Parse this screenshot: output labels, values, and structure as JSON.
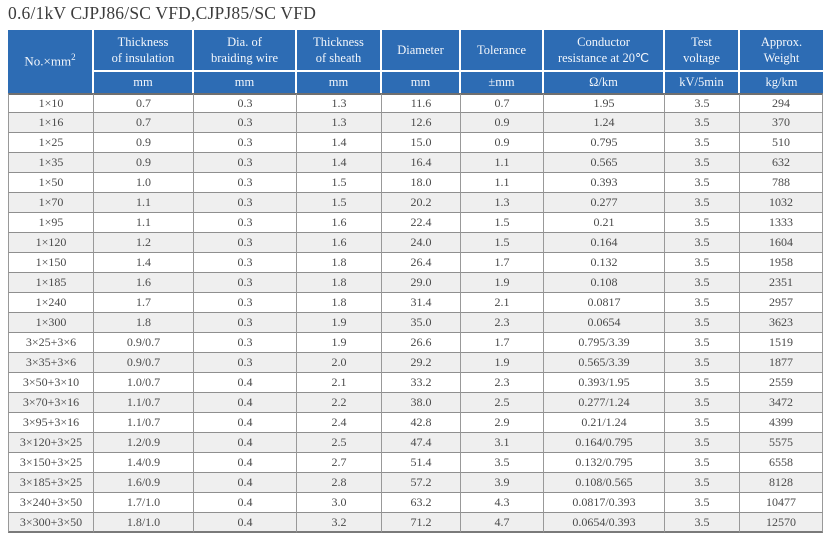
{
  "title": "0.6/1kV CJPJ86/SC VFD,CJPJ85/SC VFD",
  "table": {
    "corner": {
      "base": "No.×mm",
      "sup": "2"
    },
    "columns": [
      {
        "label": "Thickness\nof insulation",
        "unit": "mm"
      },
      {
        "label": "Dia. of\nbraiding wire",
        "unit": "mm"
      },
      {
        "label": "Thickness\nof sheath",
        "unit": "mm"
      },
      {
        "label": "Diameter",
        "unit": "mm"
      },
      {
        "label": "Tolerance",
        "unit": "±mm"
      },
      {
        "label": "Conductor\nresistance at 20℃",
        "unit": "Ω/km"
      },
      {
        "label": "Test\nvoltage",
        "unit": "kV/5min"
      },
      {
        "label": "Approx.\nWeight",
        "unit": "kg/km"
      }
    ],
    "rows": [
      [
        "1×10",
        "0.7",
        "0.3",
        "1.3",
        "11.6",
        "0.7",
        "1.95",
        "3.5",
        "294"
      ],
      [
        "1×16",
        "0.7",
        "0.3",
        "1.3",
        "12.6",
        "0.9",
        "1.24",
        "3.5",
        "370"
      ],
      [
        "1×25",
        "0.9",
        "0.3",
        "1.4",
        "15.0",
        "0.9",
        "0.795",
        "3.5",
        "510"
      ],
      [
        "1×35",
        "0.9",
        "0.3",
        "1.4",
        "16.4",
        "1.1",
        "0.565",
        "3.5",
        "632"
      ],
      [
        "1×50",
        "1.0",
        "0.3",
        "1.5",
        "18.0",
        "1.1",
        "0.393",
        "3.5",
        "788"
      ],
      [
        "1×70",
        "1.1",
        "0.3",
        "1.5",
        "20.2",
        "1.3",
        "0.277",
        "3.5",
        "1032"
      ],
      [
        "1×95",
        "1.1",
        "0.3",
        "1.6",
        "22.4",
        "1.5",
        "0.21",
        "3.5",
        "1333"
      ],
      [
        "1×120",
        "1.2",
        "0.3",
        "1.6",
        "24.0",
        "1.5",
        "0.164",
        "3.5",
        "1604"
      ],
      [
        "1×150",
        "1.4",
        "0.3",
        "1.8",
        "26.4",
        "1.7",
        "0.132",
        "3.5",
        "1958"
      ],
      [
        "1×185",
        "1.6",
        "0.3",
        "1.8",
        "29.0",
        "1.9",
        "0.108",
        "3.5",
        "2351"
      ],
      [
        "1×240",
        "1.7",
        "0.3",
        "1.8",
        "31.4",
        "2.1",
        "0.0817",
        "3.5",
        "2957"
      ],
      [
        "1×300",
        "1.8",
        "0.3",
        "1.9",
        "35.0",
        "2.3",
        "0.0654",
        "3.5",
        "3623"
      ],
      [
        "3×25+3×6",
        "0.9/0.7",
        "0.3",
        "1.9",
        "26.6",
        "1.7",
        "0.795/3.39",
        "3.5",
        "1519"
      ],
      [
        "3×35+3×6",
        "0.9/0.7",
        "0.3",
        "2.0",
        "29.2",
        "1.9",
        "0.565/3.39",
        "3.5",
        "1877"
      ],
      [
        "3×50+3×10",
        "1.0/0.7",
        "0.4",
        "2.1",
        "33.2",
        "2.3",
        "0.393/1.95",
        "3.5",
        "2559"
      ],
      [
        "3×70+3×16",
        "1.1/0.7",
        "0.4",
        "2.2",
        "38.0",
        "2.5",
        "0.277/1.24",
        "3.5",
        "3472"
      ],
      [
        "3×95+3×16",
        "1.1/0.7",
        "0.4",
        "2.4",
        "42.8",
        "2.9",
        "0.21/1.24",
        "3.5",
        "4399"
      ],
      [
        "3×120+3×25",
        "1.2/0.9",
        "0.4",
        "2.5",
        "47.4",
        "3.1",
        "0.164/0.795",
        "3.5",
        "5575"
      ],
      [
        "3×150+3×25",
        "1.4/0.9",
        "0.4",
        "2.7",
        "51.4",
        "3.5",
        "0.132/0.795",
        "3.5",
        "6558"
      ],
      [
        "3×185+3×25",
        "1.6/0.9",
        "0.4",
        "2.8",
        "57.2",
        "3.9",
        "0.108/0.565",
        "3.5",
        "8128"
      ],
      [
        "3×240+3×50",
        "1.7/1.0",
        "0.4",
        "3.0",
        "63.2",
        "4.3",
        "0.0817/0.393",
        "3.5",
        "10477"
      ],
      [
        "3×300+3×50",
        "1.8/1.0",
        "0.4",
        "3.2",
        "71.2",
        "4.7",
        "0.0654/0.393",
        "3.5",
        "12570"
      ]
    ]
  }
}
